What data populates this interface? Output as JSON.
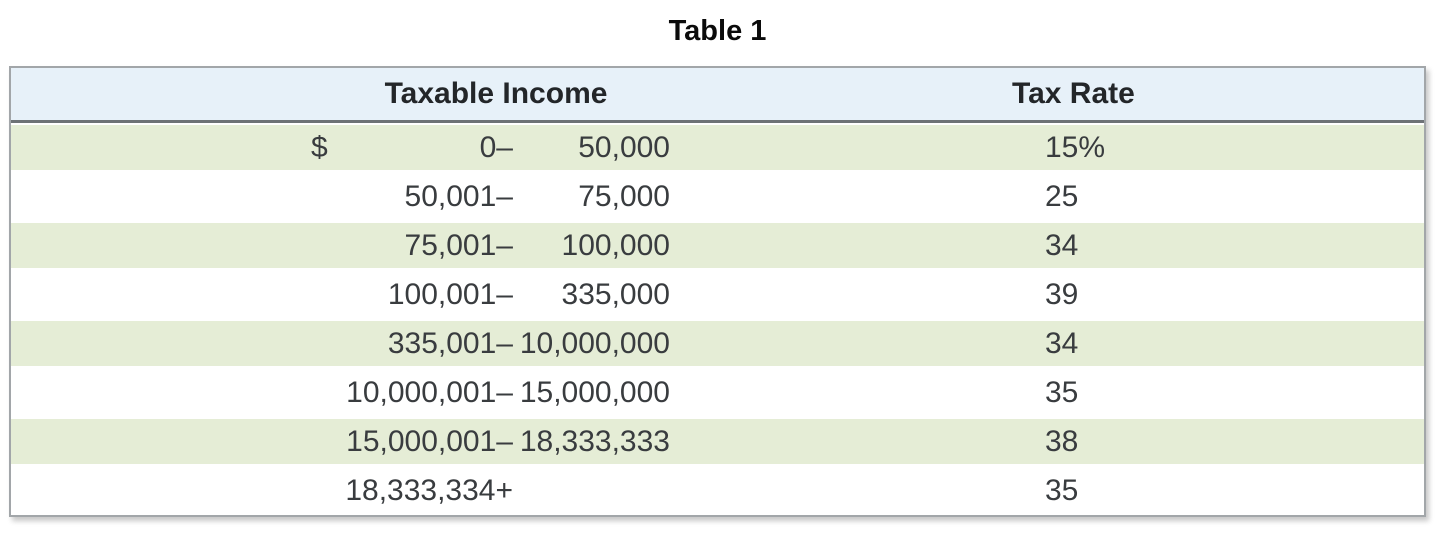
{
  "table": {
    "title": "Table 1",
    "columns": [
      {
        "label": "Taxable Income"
      },
      {
        "label": "Tax Rate"
      }
    ],
    "rows": [
      {
        "dollar": "$",
        "low": "0–",
        "high": "50,000",
        "rate": "15%",
        "shaded": true
      },
      {
        "dollar": "",
        "low": "50,001–",
        "high": "75,000",
        "rate": "25",
        "shaded": false
      },
      {
        "dollar": "",
        "low": "75,001–",
        "high": "100,000",
        "rate": "34",
        "shaded": true
      },
      {
        "dollar": "",
        "low": "100,001–",
        "high": "335,000",
        "rate": "39",
        "shaded": false
      },
      {
        "dollar": "",
        "low": "335,001–",
        "high": "10,000,000",
        "rate": "34",
        "shaded": true
      },
      {
        "dollar": "",
        "low": "10,000,001–",
        "high": "15,000,000",
        "rate": "35",
        "shaded": false
      },
      {
        "dollar": "",
        "low": "15,000,001–",
        "high": "18,333,333",
        "rate": "38",
        "shaded": true
      },
      {
        "dollar": "",
        "low": "18,333,334+",
        "high": "",
        "rate": "35",
        "shaded": false
      }
    ],
    "colors": {
      "header_bg": "#e7f1f9",
      "row_shaded_bg": "#e5edd6",
      "row_plain_bg": "#ffffff",
      "border": "#a2a6a9",
      "header_divider": "#6d7276",
      "text": "#393c3f",
      "header_text": "#232629",
      "title_text": "#0b0b0b"
    }
  }
}
